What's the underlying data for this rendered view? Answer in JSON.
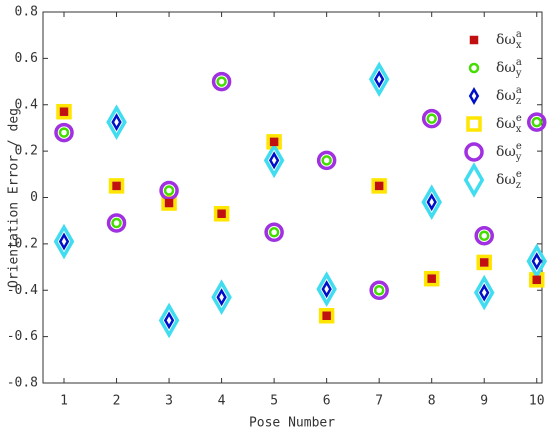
{
  "chart_data": {
    "type": "scatter",
    "xlabel": "Pose Number",
    "ylabel": "Orientation Error / deg",
    "x": [
      1,
      2,
      3,
      4,
      5,
      6,
      7,
      8,
      9,
      10
    ],
    "xlim": [
      0.6,
      10.1
    ],
    "xticks": [
      1,
      2,
      3,
      4,
      5,
      6,
      7,
      8,
      9,
      10
    ],
    "ylim": [
      -0.8,
      0.8
    ],
    "yticks": [
      -0.8,
      -0.6,
      -0.4,
      -0.2,
      0,
      0.2,
      0.4,
      0.6,
      0.8
    ],
    "legend": "top-right",
    "series": [
      {
        "name": "δω",
        "sup": "a",
        "sub": "x",
        "marker": "square",
        "size": 6,
        "filled": true,
        "color": "#c01010",
        "values": [
          0.37,
          0.05,
          -0.024,
          -0.07,
          0.24,
          -0.51,
          0.05,
          -0.35,
          -0.28,
          -0.355
        ]
      },
      {
        "name": "δω",
        "sup": "a",
        "sub": "y",
        "marker": "circle",
        "size": 4,
        "filled": false,
        "color": "#44dd00",
        "values": [
          0.28,
          -0.11,
          0.03,
          0.5,
          -0.15,
          0.16,
          -0.4,
          0.34,
          -0.165,
          0.325
        ]
      },
      {
        "name": "δω",
        "sup": "a",
        "sub": "z",
        "marker": "diamond",
        "size": 5,
        "filled": false,
        "color": "#0010c8",
        "values": [
          -0.19,
          0.325,
          -0.53,
          -0.43,
          0.16,
          -0.395,
          0.51,
          -0.02,
          -0.41,
          -0.275
        ]
      },
      {
        "name": "δω",
        "sup": "e",
        "sub": "x",
        "marker": "square",
        "size": 12,
        "filled": false,
        "color": "#ffe600",
        "values": [
          0.37,
          0.05,
          -0.024,
          -0.07,
          0.24,
          -0.51,
          0.05,
          -0.35,
          -0.28,
          -0.355
        ]
      },
      {
        "name": "δω",
        "sup": "e",
        "sub": "y",
        "marker": "circle",
        "size": 8,
        "filled": false,
        "color": "#a030e0",
        "values": [
          0.28,
          -0.11,
          0.03,
          0.5,
          -0.15,
          0.16,
          -0.4,
          0.34,
          -0.165,
          0.325
        ]
      },
      {
        "name": "δω",
        "sup": "e",
        "sub": "z",
        "marker": "diamond",
        "size": 11,
        "filled": false,
        "color": "#40dcf0",
        "values": [
          -0.19,
          0.325,
          -0.53,
          -0.43,
          0.16,
          -0.395,
          0.51,
          -0.02,
          -0.41,
          -0.275
        ]
      }
    ]
  }
}
